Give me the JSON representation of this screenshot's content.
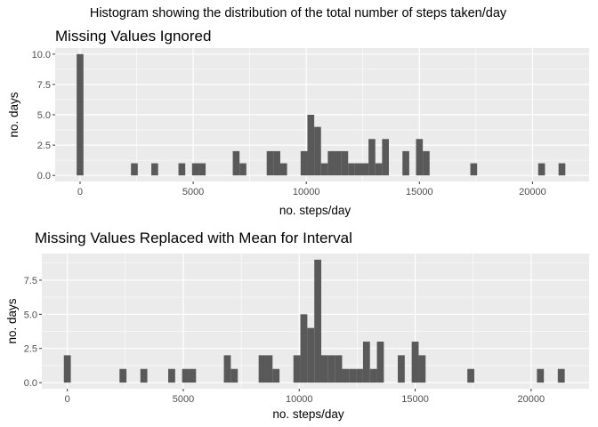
{
  "title": "Histogram showing the distribution of the total number of steps taken/day",
  "chart_data": [
    {
      "type": "bar",
      "title": "Missing Values Ignored",
      "xlabel": "no. steps/day",
      "ylabel": "no. days",
      "xlim": [
        -1100,
        22500
      ],
      "ylim": [
        -0.5,
        10.5
      ],
      "xticks": [
        "0",
        "5000",
        "10000",
        "15000",
        "20000"
      ],
      "yticks": [
        "0.0",
        "2.5",
        "5.0",
        "7.5",
        "10.0"
      ],
      "binwidth": 300,
      "bar_color": "#595959",
      "panel_color": "#ebebeb",
      "grid": true,
      "bins": [
        {
          "x": 0,
          "count": 10
        },
        {
          "x": 2400,
          "count": 1
        },
        {
          "x": 3300,
          "count": 1
        },
        {
          "x": 4500,
          "count": 1
        },
        {
          "x": 5100,
          "count": 1
        },
        {
          "x": 5400,
          "count": 1
        },
        {
          "x": 6900,
          "count": 2
        },
        {
          "x": 7200,
          "count": 1
        },
        {
          "x": 8400,
          "count": 2
        },
        {
          "x": 8700,
          "count": 2
        },
        {
          "x": 9000,
          "count": 1
        },
        {
          "x": 9900,
          "count": 2
        },
        {
          "x": 10200,
          "count": 5
        },
        {
          "x": 10500,
          "count": 4
        },
        {
          "x": 10800,
          "count": 1
        },
        {
          "x": 11100,
          "count": 2
        },
        {
          "x": 11400,
          "count": 2
        },
        {
          "x": 11700,
          "count": 2
        },
        {
          "x": 12000,
          "count": 1
        },
        {
          "x": 12300,
          "count": 1
        },
        {
          "x": 12600,
          "count": 1
        },
        {
          "x": 12900,
          "count": 3
        },
        {
          "x": 13200,
          "count": 1
        },
        {
          "x": 13500,
          "count": 3
        },
        {
          "x": 14400,
          "count": 2
        },
        {
          "x": 15000,
          "count": 3
        },
        {
          "x": 15300,
          "count": 2
        },
        {
          "x": 17400,
          "count": 1
        },
        {
          "x": 20400,
          "count": 1
        },
        {
          "x": 21300,
          "count": 1
        }
      ]
    },
    {
      "type": "bar",
      "title": "Missing Values Replaced with Mean for Interval",
      "xlabel": "no. steps/day",
      "ylabel": "no. days",
      "xlim": [
        -1100,
        22500
      ],
      "ylim": [
        -0.45,
        9.45
      ],
      "xticks": [
        "0",
        "5000",
        "10000",
        "15000",
        "20000"
      ],
      "yticks": [
        "0.0",
        "2.5",
        "5.0",
        "7.5"
      ],
      "binwidth": 300,
      "bar_color": "#595959",
      "panel_color": "#ebebeb",
      "grid": true,
      "bins": [
        {
          "x": 0,
          "count": 2
        },
        {
          "x": 2400,
          "count": 1
        },
        {
          "x": 3300,
          "count": 1
        },
        {
          "x": 4500,
          "count": 1
        },
        {
          "x": 5100,
          "count": 1
        },
        {
          "x": 5400,
          "count": 1
        },
        {
          "x": 6900,
          "count": 2
        },
        {
          "x": 7200,
          "count": 1
        },
        {
          "x": 8400,
          "count": 2
        },
        {
          "x": 8700,
          "count": 2
        },
        {
          "x": 9000,
          "count": 1
        },
        {
          "x": 9900,
          "count": 2
        },
        {
          "x": 10200,
          "count": 5
        },
        {
          "x": 10500,
          "count": 4
        },
        {
          "x": 10800,
          "count": 9
        },
        {
          "x": 11100,
          "count": 2
        },
        {
          "x": 11400,
          "count": 2
        },
        {
          "x": 11700,
          "count": 2
        },
        {
          "x": 12000,
          "count": 1
        },
        {
          "x": 12300,
          "count": 1
        },
        {
          "x": 12600,
          "count": 1
        },
        {
          "x": 12900,
          "count": 3
        },
        {
          "x": 13200,
          "count": 1
        },
        {
          "x": 13500,
          "count": 3
        },
        {
          "x": 14400,
          "count": 2
        },
        {
          "x": 15000,
          "count": 3
        },
        {
          "x": 15300,
          "count": 2
        },
        {
          "x": 17400,
          "count": 1
        },
        {
          "x": 20400,
          "count": 1
        },
        {
          "x": 21300,
          "count": 1
        }
      ]
    }
  ]
}
